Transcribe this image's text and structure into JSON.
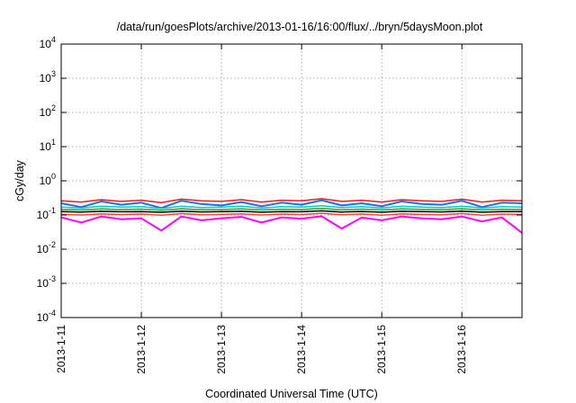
{
  "chart_data": {
    "type": "line",
    "title": "/data/run/goesPlots/archive/2013-01-16/16:00/flux/../bryn/5daysMoon.plot",
    "xlabel": "Coordinated Universal Time (UTC)",
    "ylabel": "cGy/day",
    "yscale": "log",
    "ylim": [
      0.0001,
      10000
    ],
    "xlim": [
      "2013-01-11T00:00",
      "2013-01-16T18:00"
    ],
    "grid": true,
    "x_ticks": [
      "2013-1-11",
      "2013-1-12",
      "2013-1-13",
      "2013-1-14",
      "2013-1-15",
      "2013-1-16"
    ],
    "y_ticks": [
      {
        "value": 0.0001,
        "base": "10",
        "exp": "-4"
      },
      {
        "value": 0.001,
        "base": "10",
        "exp": "-3"
      },
      {
        "value": 0.01,
        "base": "10",
        "exp": "-2"
      },
      {
        "value": 0.1,
        "base": "10",
        "exp": "-1"
      },
      {
        "value": 1,
        "base": "10",
        "exp": "0"
      },
      {
        "value": 10,
        "base": "10",
        "exp": "1"
      },
      {
        "value": 100,
        "base": "10",
        "exp": "2"
      },
      {
        "value": 1000,
        "base": "10",
        "exp": "3"
      },
      {
        "value": 10000,
        "base": "10",
        "exp": "4"
      }
    ],
    "x": [
      "2013-01-11T00:00",
      "2013-01-11T06:00",
      "2013-01-11T12:00",
      "2013-01-11T18:00",
      "2013-01-12T00:00",
      "2013-01-12T06:00",
      "2013-01-12T12:00",
      "2013-01-12T18:00",
      "2013-01-13T00:00",
      "2013-01-13T06:00",
      "2013-01-13T12:00",
      "2013-01-13T18:00",
      "2013-01-14T00:00",
      "2013-01-14T06:00",
      "2013-01-14T12:00",
      "2013-01-14T18:00",
      "2013-01-15T00:00",
      "2013-01-15T06:00",
      "2013-01-15T12:00",
      "2013-01-15T18:00",
      "2013-01-16T00:00",
      "2013-01-16T06:00",
      "2013-01-16T12:00",
      "2013-01-16T18:00"
    ],
    "series": [
      {
        "color": "#e41a1c",
        "values": [
          0.26,
          0.24,
          0.28,
          0.25,
          0.27,
          0.23,
          0.29,
          0.26,
          0.25,
          0.28,
          0.24,
          0.27,
          0.26,
          0.3,
          0.25,
          0.27,
          0.24,
          0.28,
          0.26,
          0.25,
          0.29,
          0.24,
          0.27,
          0.26
        ]
      },
      {
        "color": "#1f6fe0",
        "values": [
          0.22,
          0.17,
          0.25,
          0.2,
          0.23,
          0.16,
          0.26,
          0.21,
          0.19,
          0.24,
          0.18,
          0.23,
          0.2,
          0.27,
          0.19,
          0.22,
          0.18,
          0.25,
          0.21,
          0.2,
          0.26,
          0.17,
          0.23,
          0.22
        ]
      },
      {
        "color": "#00c8c8",
        "values": [
          0.17,
          0.16,
          0.18,
          0.17,
          0.175,
          0.155,
          0.18,
          0.165,
          0.17,
          0.18,
          0.16,
          0.175,
          0.17,
          0.185,
          0.165,
          0.175,
          0.16,
          0.18,
          0.17,
          0.165,
          0.18,
          0.16,
          0.175,
          0.17
        ]
      },
      {
        "color": "#2ca02c",
        "values": [
          0.145,
          0.14,
          0.15,
          0.145,
          0.148,
          0.138,
          0.152,
          0.143,
          0.145,
          0.15,
          0.14,
          0.147,
          0.145,
          0.155,
          0.142,
          0.148,
          0.14,
          0.15,
          0.146,
          0.143,
          0.152,
          0.14,
          0.147,
          0.145
        ]
      },
      {
        "color": "#000000",
        "values": [
          0.125,
          0.122,
          0.128,
          0.124,
          0.126,
          0.12,
          0.13,
          0.123,
          0.125,
          0.128,
          0.121,
          0.126,
          0.124,
          0.132,
          0.122,
          0.127,
          0.121,
          0.128,
          0.125,
          0.123,
          0.13,
          0.121,
          0.126,
          0.125
        ]
      },
      {
        "color": "#ff4040",
        "values": [
          0.105,
          0.1,
          0.108,
          0.103,
          0.106,
          0.098,
          0.11,
          0.102,
          0.104,
          0.108,
          0.1,
          0.106,
          0.103,
          0.112,
          0.101,
          0.107,
          0.099,
          0.108,
          0.104,
          0.102,
          0.11,
          0.099,
          0.106,
          0.104
        ]
      },
      {
        "color": "#ff00ff",
        "values": [
          0.085,
          0.06,
          0.09,
          0.075,
          0.08,
          0.035,
          0.09,
          0.07,
          0.08,
          0.088,
          0.06,
          0.085,
          0.078,
          0.092,
          0.04,
          0.084,
          0.07,
          0.09,
          0.08,
          0.075,
          0.09,
          0.065,
          0.085,
          0.03
        ]
      }
    ]
  }
}
